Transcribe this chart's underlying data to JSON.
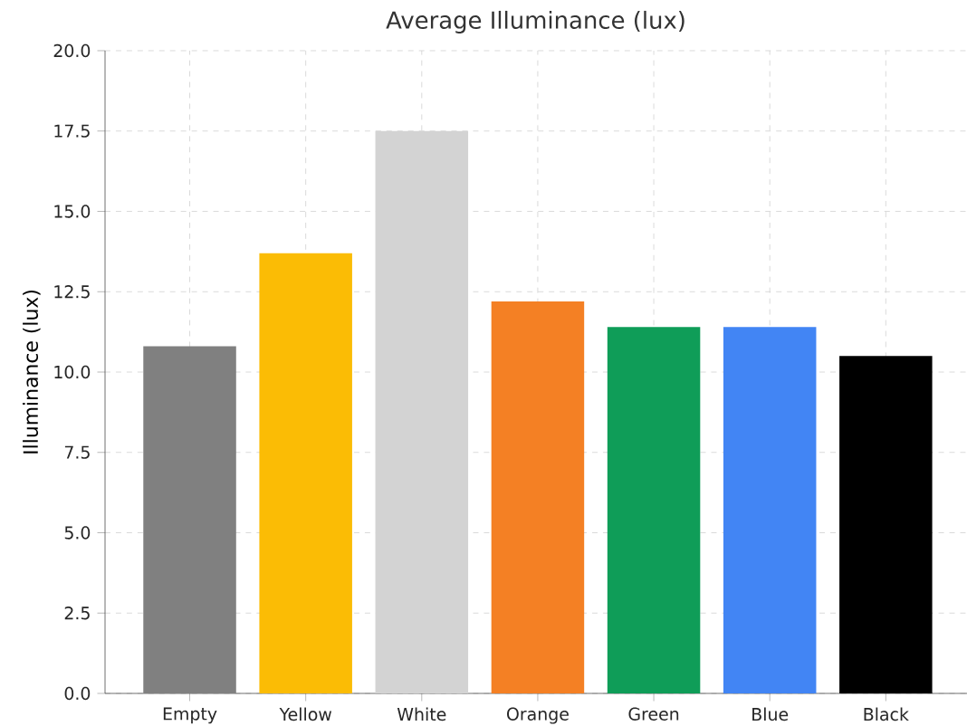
{
  "chart_data": {
    "type": "bar",
    "title": "Average Illuminance (lux)",
    "ylabel": "Illuminance (lux)",
    "categories": [
      "Empty",
      "Yellow",
      "White",
      "Orange",
      "Green",
      "Blue",
      "Black"
    ],
    "values": [
      10.8,
      13.7,
      17.5,
      12.2,
      11.4,
      11.4,
      10.5
    ],
    "colors": [
      "#808080",
      "#fbbc05",
      "#d3d3d3",
      "#f48024",
      "#0f9d58",
      "#4285f4",
      "#000000"
    ],
    "ylim": [
      0,
      20
    ],
    "yticks": [
      {
        "value": 0,
        "label": "0.0"
      },
      2.5,
      {
        "value": 5,
        "label": "5.0"
      },
      7.5,
      {
        "value": 10,
        "label": "10.0"
      },
      12.5,
      {
        "value": 15,
        "label": "15.0"
      },
      17.5,
      {
        "value": 20,
        "label": "20.0"
      }
    ],
    "grid": true
  }
}
